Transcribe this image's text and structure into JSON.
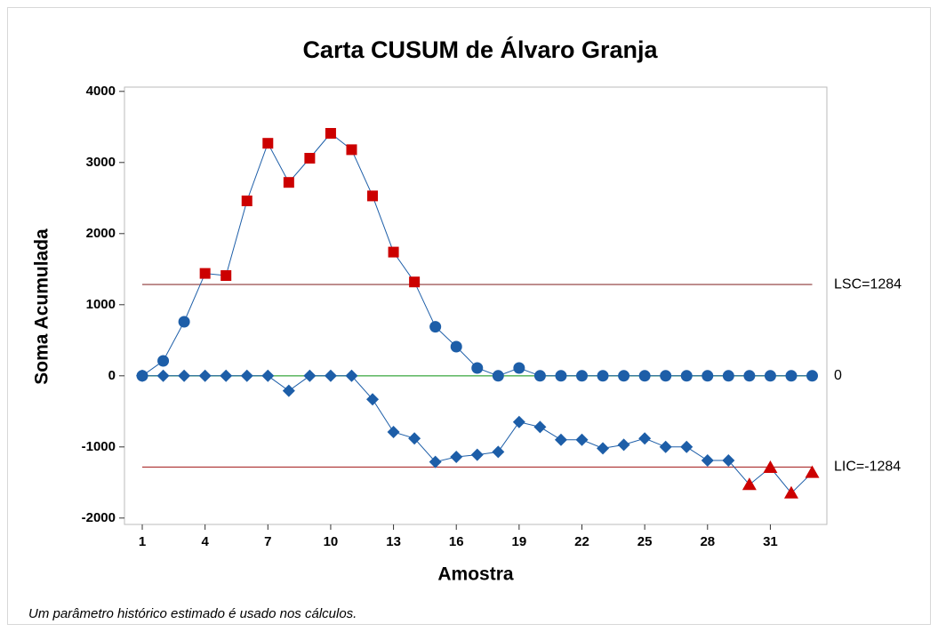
{
  "chart_data": {
    "type": "cusum",
    "title": "Carta CUSUM de Álvaro Granja",
    "xlabel": "Amostra",
    "ylabel": "Soma Acumulada",
    "footnote": "Um parâmetro histórico estimado é usado nos cálculos.",
    "x": [
      1,
      2,
      3,
      4,
      5,
      6,
      7,
      8,
      9,
      10,
      11,
      12,
      13,
      14,
      15,
      16,
      17,
      18,
      19,
      20,
      21,
      22,
      23,
      24,
      25,
      26,
      27,
      28,
      29,
      30,
      31,
      32,
      33
    ],
    "series": [
      {
        "color": "#1d5ea8",
        "marker": "circle",
        "out_color": "#cc0000",
        "out_marker": "square",
        "values": [
          0,
          210,
          760,
          1440,
          1410,
          2460,
          3270,
          2720,
          3060,
          3410,
          3180,
          2530,
          1740,
          1320,
          690,
          410,
          110,
          0,
          110,
          0,
          0,
          0,
          0,
          0,
          0,
          0,
          0,
          0,
          0,
          0,
          0,
          0,
          0
        ]
      },
      {
        "color": "#1d5ea8",
        "marker": "diamond",
        "out_color": "#cc0000",
        "out_marker": "triangle",
        "values": [
          0,
          0,
          0,
          0,
          0,
          0,
          0,
          -210,
          0,
          0,
          0,
          -330,
          -790,
          -880,
          -1210,
          -1140,
          -1110,
          -1070,
          -650,
          -720,
          -900,
          -900,
          -1020,
          -970,
          -880,
          -1000,
          -1000,
          -1190,
          -1190,
          -1530,
          -1290,
          -1650,
          -1360
        ]
      }
    ],
    "ref_lines": [
      {
        "value": 1284,
        "label": "LSC=1284",
        "color": "#a05a5a"
      },
      {
        "value": 0,
        "label": "0",
        "color": "#4caf50"
      },
      {
        "value": -1284,
        "label": "LIC=-1284",
        "color": "#b03a3a"
      }
    ],
    "xlim": [
      0.15,
      33.7
    ],
    "ylim": [
      -2090,
      4060
    ],
    "xticks": [
      1,
      4,
      7,
      10,
      13,
      16,
      19,
      22,
      25,
      28,
      31
    ],
    "yticks": [
      -2000,
      -1000,
      0,
      1000,
      2000,
      3000,
      4000
    ]
  }
}
